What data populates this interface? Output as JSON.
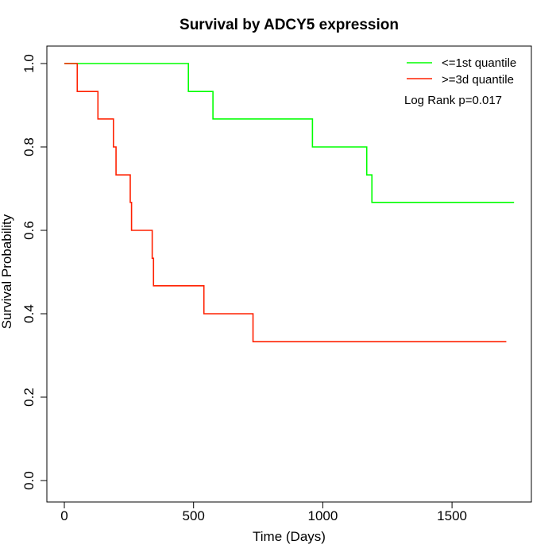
{
  "chart_data": {
    "type": "line",
    "title": "Survival by ADCY5 expression",
    "xlabel": "Time (Days)",
    "ylabel": "Survival Probability",
    "xlim": [
      0,
      1750
    ],
    "ylim": [
      0,
      1.0
    ],
    "x_ticks": [
      0,
      500,
      1000,
      1500
    ],
    "x_tick_labels": [
      "0",
      "500",
      "1000",
      "1500"
    ],
    "y_ticks": [
      0.0,
      0.2,
      0.4,
      0.6,
      0.8,
      1.0
    ],
    "y_tick_labels": [
      "0.0",
      "0.2",
      "0.4",
      "0.6",
      "0.8",
      "1.0"
    ],
    "grid": false,
    "legend_position": "top-right",
    "annotation": "Log Rank p=0.017",
    "series": [
      {
        "name": "<=1st quantile",
        "color": "#00ff00",
        "step": true,
        "x": [
          0,
          480,
          575,
          960,
          1170,
          1190,
          1740
        ],
        "y": [
          1.0,
          0.933,
          0.867,
          0.8,
          0.733,
          0.667,
          0.667
        ]
      },
      {
        "name": ">=3d quantile",
        "color": "#ff2000",
        "step": true,
        "x": [
          0,
          50,
          130,
          190,
          200,
          255,
          260,
          340,
          345,
          540,
          730,
          1710
        ],
        "y": [
          1.0,
          0.933,
          0.867,
          0.8,
          0.733,
          0.667,
          0.6,
          0.533,
          0.467,
          0.4,
          0.333,
          0.333
        ]
      }
    ]
  }
}
